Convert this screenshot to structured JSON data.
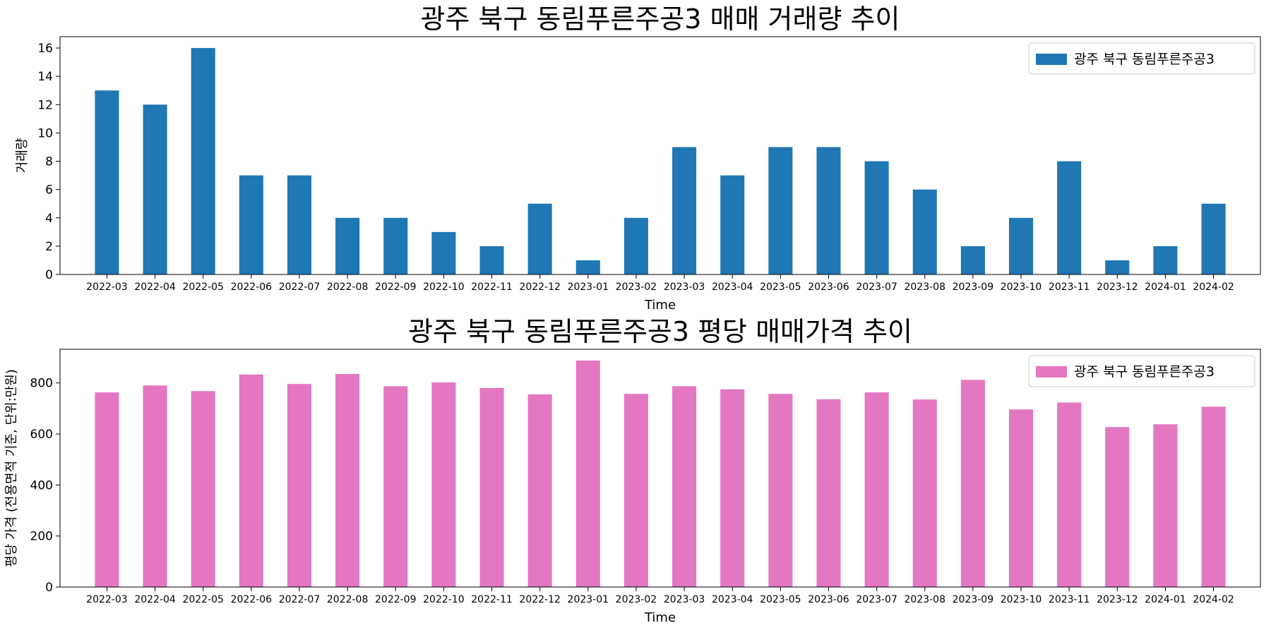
{
  "chart_data": [
    {
      "type": "bar",
      "title": "광주 북구 동림푸른주공3 매매 거래량 추이",
      "xlabel": "Time",
      "ylabel": "거래량",
      "categories": [
        "2022-03",
        "2022-04",
        "2022-05",
        "2022-06",
        "2022-07",
        "2022-08",
        "2022-09",
        "2022-10",
        "2022-11",
        "2022-12",
        "2023-01",
        "2023-02",
        "2023-03",
        "2023-04",
        "2023-05",
        "2023-06",
        "2023-07",
        "2023-08",
        "2023-09",
        "2023-10",
        "2023-11",
        "2023-12",
        "2024-01",
        "2024-02"
      ],
      "series": [
        {
          "name": "광주 북구 동림푸른주공3",
          "color": "#1f77b4",
          "values": [
            13,
            12,
            16,
            7,
            7,
            4,
            4,
            3,
            2,
            5,
            1,
            4,
            9,
            7,
            9,
            9,
            8,
            6,
            2,
            4,
            8,
            1,
            2,
            5
          ]
        }
      ],
      "ylim": [
        0,
        16.8
      ],
      "yticks": [
        0,
        2,
        4,
        6,
        8,
        10,
        12,
        14,
        16
      ],
      "legend": "top-right",
      "grid": false
    },
    {
      "type": "bar",
      "title": "광주 북구 동림푸른주공3 평당 매매가격 추이",
      "xlabel": "Time",
      "ylabel": "평당 가격 (전용면적 기준, 단위:만원)",
      "categories": [
        "2022-03",
        "2022-04",
        "2022-05",
        "2022-06",
        "2022-07",
        "2022-08",
        "2022-09",
        "2022-10",
        "2022-11",
        "2022-12",
        "2023-01",
        "2023-02",
        "2023-03",
        "2023-04",
        "2023-05",
        "2023-06",
        "2023-07",
        "2023-08",
        "2023-09",
        "2023-10",
        "2023-11",
        "2023-12",
        "2024-01",
        "2024-02"
      ],
      "series": [
        {
          "name": "광주 북구 동림푸른주공3",
          "color": "#e377c2",
          "values": [
            763,
            790,
            768,
            833,
            796,
            835,
            787,
            802,
            780,
            755,
            888,
            757,
            787,
            775,
            757,
            736,
            763,
            735,
            812,
            696,
            723,
            627,
            638,
            707
          ]
        }
      ],
      "ylim": [
        0,
        932
      ],
      "yticks": [
        0,
        200,
        400,
        600,
        800
      ],
      "legend": "top-right",
      "grid": false
    }
  ]
}
